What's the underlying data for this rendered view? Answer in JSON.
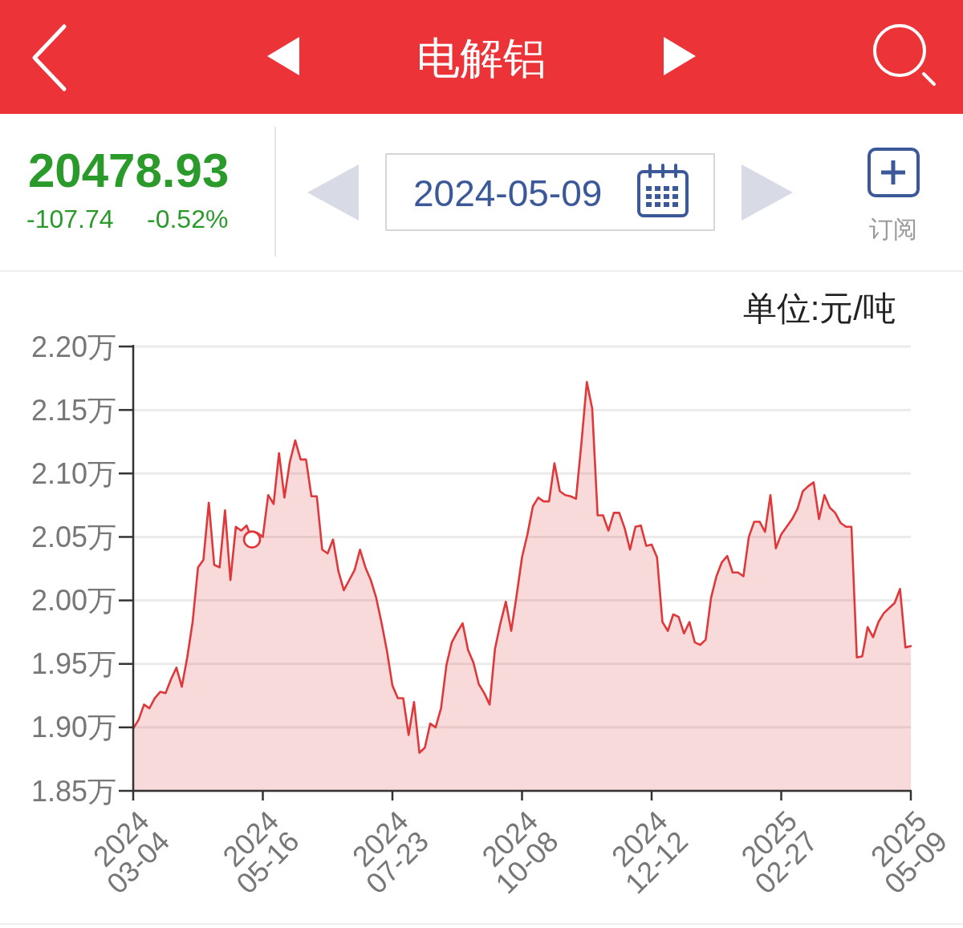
{
  "chart_data": {
    "type": "area",
    "title": "电解铝",
    "ylabel": "单位:元/吨",
    "annotations": [
      "20478.93",
      "-107.74",
      "-0.52%",
      "2024-05-09",
      "订阅"
    ],
    "categories": [
      "2024\n03-04",
      null,
      null,
      null,
      null,
      null,
      null,
      null,
      null,
      null,
      null,
      null,
      null,
      null,
      null,
      null,
      null,
      null,
      null,
      null,
      null,
      null,
      null,
      null,
      "2024\n05-16",
      null,
      null,
      null,
      null,
      null,
      null,
      null,
      null,
      null,
      null,
      null,
      null,
      null,
      null,
      null,
      null,
      null,
      null,
      null,
      null,
      null,
      null,
      null,
      "2024\n07-23",
      null,
      null,
      null,
      null,
      null,
      null,
      null,
      null,
      null,
      null,
      null,
      null,
      null,
      null,
      null,
      null,
      null,
      null,
      null,
      null,
      null,
      null,
      null,
      "2024\n10-08",
      null,
      null,
      null,
      null,
      null,
      null,
      null,
      null,
      null,
      null,
      null,
      null,
      null,
      null,
      null,
      null,
      null,
      null,
      null,
      null,
      null,
      null,
      null,
      "2024\n12-12",
      null,
      null,
      null,
      null,
      null,
      null,
      null,
      null,
      null,
      null,
      null,
      null,
      null,
      null,
      null,
      null,
      null,
      null,
      null,
      null,
      null,
      null,
      null,
      "2025\n02-27",
      null,
      null,
      null,
      null,
      null,
      null,
      null,
      null,
      null,
      null,
      null,
      null,
      null,
      null,
      null,
      null,
      null,
      null,
      null,
      null,
      null,
      null,
      null,
      "2025\n05-09"
    ],
    "series": [
      {
        "color": "#e0383a",
        "values": [
          1.899,
          1.906,
          1.918,
          1.915,
          1.923,
          1.928,
          1.927,
          1.938,
          1.947,
          1.932,
          1.955,
          1.983,
          2.026,
          2.032,
          2.077,
          2.028,
          2.026,
          2.071,
          2.016,
          2.058,
          2.055,
          2.059,
          2.048,
          2.053,
          2.05,
          2.083,
          2.076,
          2.116,
          2.081,
          2.109,
          2.126,
          2.111,
          2.111,
          2.082,
          2.082,
          2.04,
          2.037,
          2.048,
          2.023,
          2.008,
          2.016,
          2.024,
          2.04,
          2.026,
          2.016,
          2.002,
          1.982,
          1.96,
          1.933,
          1.923,
          1.923,
          1.894,
          1.92,
          1.88,
          1.884,
          1.903,
          1.9,
          1.915,
          1.949,
          1.967,
          1.975,
          1.982,
          1.961,
          1.951,
          1.934,
          1.927,
          1.918,
          1.962,
          1.982,
          1.999,
          1.976,
          2.004,
          2.034,
          2.052,
          2.074,
          2.081,
          2.078,
          2.078,
          2.108,
          2.086,
          2.083,
          2.082,
          2.08,
          2.124,
          2.172,
          2.151,
          2.067,
          2.067,
          2.055,
          2.069,
          2.069,
          2.057,
          2.04,
          2.058,
          2.059,
          2.043,
          2.044,
          2.034,
          1.983,
          1.976,
          1.989,
          1.987,
          1.974,
          1.983,
          1.967,
          1.965,
          1.969,
          2.002,
          2.019,
          2.03,
          2.035,
          2.022,
          2.022,
          2.019,
          2.05,
          2.062,
          2.062,
          2.054,
          2.083,
          2.041,
          2.052,
          2.058,
          2.064,
          2.072,
          2.086,
          2.09,
          2.093,
          2.064,
          2.083,
          2.073,
          2.069,
          2.061,
          2.058,
          2.058,
          1.955,
          1.956,
          1.979,
          1.971,
          1.983,
          1.99,
          1.994,
          1.998,
          2.009,
          1.963,
          1.964
        ]
      },
      {
        "type": "scatter",
        "color": "#e0383a",
        "marker": "circle",
        "values": [
          null,
          null,
          null,
          null,
          null,
          null,
          null,
          null,
          null,
          null,
          null,
          null,
          null,
          null,
          null,
          null,
          null,
          null,
          null,
          null,
          null,
          null,
          2.048,
          null,
          null,
          null,
          null,
          null,
          null,
          null,
          null,
          null,
          null,
          null,
          null,
          null,
          null,
          null,
          null,
          null,
          null,
          null,
          null,
          null,
          null,
          null,
          null,
          null,
          null,
          null,
          null,
          null,
          null,
          null,
          null,
          null,
          null,
          null,
          null,
          null,
          null,
          null,
          null,
          null,
          null,
          null,
          null,
          null,
          null,
          null,
          null,
          null,
          null,
          null,
          null,
          null,
          null,
          null,
          null,
          null,
          null,
          null,
          null,
          null,
          null,
          null,
          null,
          null,
          null,
          null,
          null,
          null,
          null,
          null,
          null,
          null,
          null,
          null,
          null,
          null,
          null,
          null,
          null,
          null,
          null,
          null,
          null,
          null,
          null,
          null,
          null,
          null,
          null,
          null,
          null,
          null,
          null,
          null,
          null,
          null,
          null,
          null,
          null,
          null,
          null,
          null,
          null,
          null,
          null,
          null,
          null,
          null,
          null,
          null,
          null,
          null,
          null,
          null,
          null,
          null,
          null,
          null,
          null,
          null,
          null
        ]
      }
    ],
    "ylim": [
      1.85,
      2.2
    ],
    "yticks": [
      {
        "value": 2.2,
        "label": "2.20万"
      },
      {
        "value": 2.15,
        "label": "2.15万"
      },
      {
        "value": 2.1,
        "label": "2.10万"
      },
      {
        "value": 2.05,
        "label": "2.05万"
      },
      {
        "value": 2.0,
        "label": "2.00万"
      },
      {
        "value": 1.95,
        "label": "1.95万"
      },
      {
        "value": 1.9,
        "label": "1.90万"
      },
      {
        "value": 1.85,
        "label": "1.85万"
      }
    ],
    "grid": "y"
  }
}
